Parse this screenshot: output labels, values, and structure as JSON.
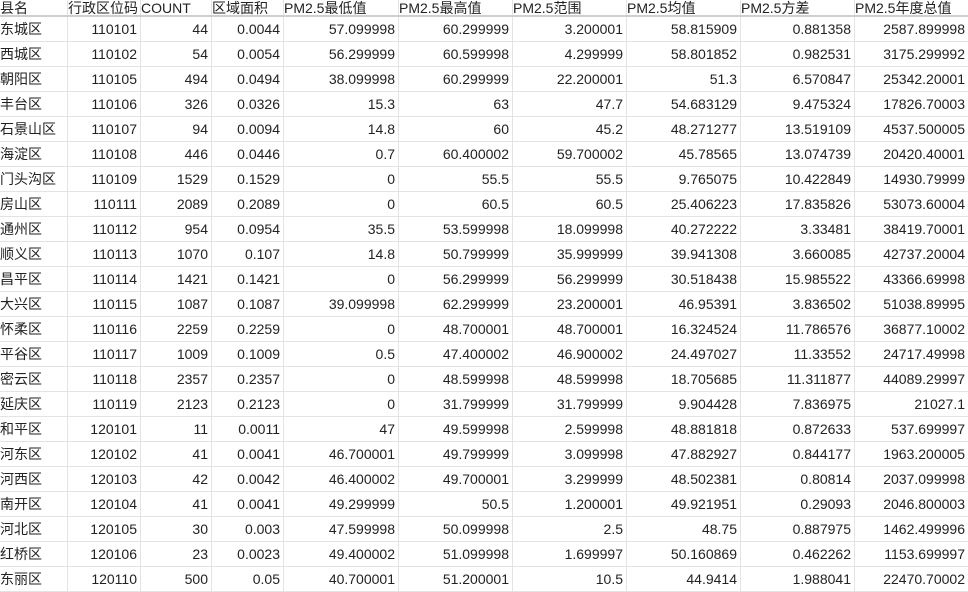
{
  "sheet": {
    "columns": [
      "县名",
      "行政区位码",
      "COUNT",
      "区域面积",
      "PM2.5最低值",
      "PM2.5最高值",
      "PM2.5范围",
      "PM2.5均值",
      "PM2.5方差",
      "PM2.5年度总值"
    ],
    "rows": [
      [
        "东城区",
        "110101",
        "44",
        "0.0044",
        "57.099998",
        "60.299999",
        "3.200001",
        "58.815909",
        "0.881358",
        "2587.899998"
      ],
      [
        "西城区",
        "110102",
        "54",
        "0.0054",
        "56.299999",
        "60.599998",
        "4.299999",
        "58.801852",
        "0.982531",
        "3175.299992"
      ],
      [
        "朝阳区",
        "110105",
        "494",
        "0.0494",
        "38.099998",
        "60.299999",
        "22.200001",
        "51.3",
        "6.570847",
        "25342.20001"
      ],
      [
        "丰台区",
        "110106",
        "326",
        "0.0326",
        "15.3",
        "63",
        "47.7",
        "54.683129",
        "9.475324",
        "17826.70003"
      ],
      [
        "石景山区",
        "110107",
        "94",
        "0.0094",
        "14.8",
        "60",
        "45.2",
        "48.271277",
        "13.519109",
        "4537.500005"
      ],
      [
        "海淀区",
        "110108",
        "446",
        "0.0446",
        "0.7",
        "60.400002",
        "59.700002",
        "45.78565",
        "13.074739",
        "20420.40001"
      ],
      [
        "门头沟区",
        "110109",
        "1529",
        "0.1529",
        "0",
        "55.5",
        "55.5",
        "9.765075",
        "10.422849",
        "14930.79999"
      ],
      [
        "房山区",
        "110111",
        "2089",
        "0.2089",
        "0",
        "60.5",
        "60.5",
        "25.406223",
        "17.835826",
        "53073.60004"
      ],
      [
        "通州区",
        "110112",
        "954",
        "0.0954",
        "35.5",
        "53.599998",
        "18.099998",
        "40.272222",
        "3.33481",
        "38419.70001"
      ],
      [
        "顺义区",
        "110113",
        "1070",
        "0.107",
        "14.8",
        "50.799999",
        "35.999999",
        "39.941308",
        "3.660085",
        "42737.20004"
      ],
      [
        "昌平区",
        "110114",
        "1421",
        "0.1421",
        "0",
        "56.299999",
        "56.299999",
        "30.518438",
        "15.985522",
        "43366.69998"
      ],
      [
        "大兴区",
        "110115",
        "1087",
        "0.1087",
        "39.099998",
        "62.299999",
        "23.200001",
        "46.95391",
        "3.836502",
        "51038.89995"
      ],
      [
        "怀柔区",
        "110116",
        "2259",
        "0.2259",
        "0",
        "48.700001",
        "48.700001",
        "16.324524",
        "11.786576",
        "36877.10002"
      ],
      [
        "平谷区",
        "110117",
        "1009",
        "0.1009",
        "0.5",
        "47.400002",
        "46.900002",
        "24.497027",
        "11.33552",
        "24717.49998"
      ],
      [
        "密云区",
        "110118",
        "2357",
        "0.2357",
        "0",
        "48.599998",
        "48.599998",
        "18.705685",
        "11.311877",
        "44089.29997"
      ],
      [
        "延庆区",
        "110119",
        "2123",
        "0.2123",
        "0",
        "31.799999",
        "31.799999",
        "9.904428",
        "7.836975",
        "21027.1"
      ],
      [
        "和平区",
        "120101",
        "11",
        "0.0011",
        "47",
        "49.599998",
        "2.599998",
        "48.881818",
        "0.872633",
        "537.699997"
      ],
      [
        "河东区",
        "120102",
        "41",
        "0.0041",
        "46.700001",
        "49.799999",
        "3.099998",
        "47.882927",
        "0.844177",
        "1963.200005"
      ],
      [
        "河西区",
        "120103",
        "42",
        "0.0042",
        "46.400002",
        "49.700001",
        "3.299999",
        "48.502381",
        "0.80814",
        "2037.099998"
      ],
      [
        "南开区",
        "120104",
        "41",
        "0.0041",
        "49.299999",
        "50.5",
        "1.200001",
        "49.921951",
        "0.29093",
        "2046.800003"
      ],
      [
        "河北区",
        "120105",
        "30",
        "0.003",
        "47.599998",
        "50.099998",
        "2.5",
        "48.75",
        "0.887975",
        "1462.499996"
      ],
      [
        "红桥区",
        "120106",
        "23",
        "0.0023",
        "49.400002",
        "51.099998",
        "1.699997",
        "50.160869",
        "0.462262",
        "1153.699997"
      ],
      [
        "东丽区",
        "120110",
        "500",
        "0.05",
        "40.700001",
        "51.200001",
        "10.5",
        "44.9414",
        "1.988041",
        "22470.70002"
      ]
    ]
  }
}
